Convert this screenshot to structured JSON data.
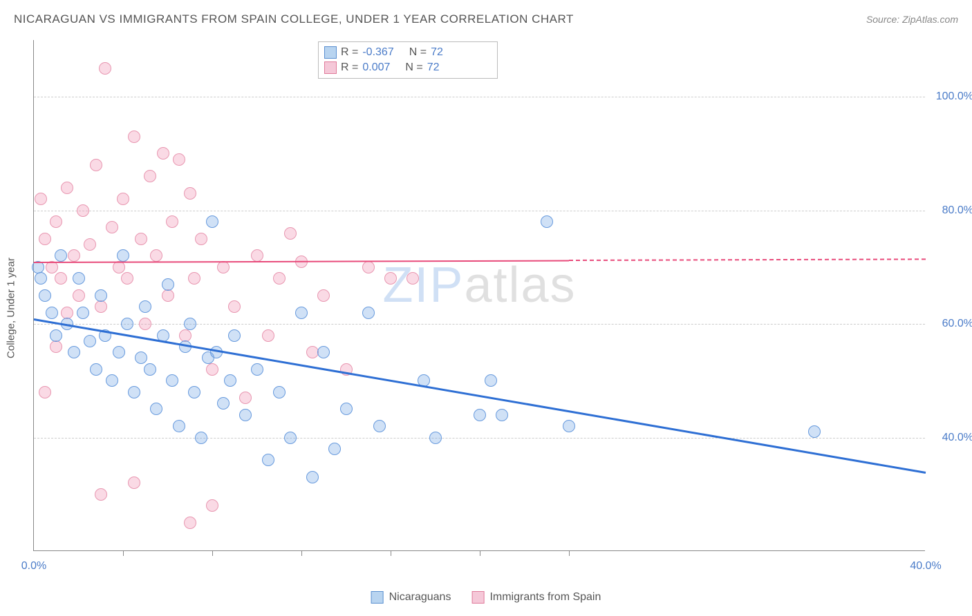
{
  "header": {
    "title": "NICARAGUAN VS IMMIGRANTS FROM SPAIN COLLEGE, UNDER 1 YEAR CORRELATION CHART",
    "source_prefix": "Source: ",
    "source_name": "ZipAtlas.com"
  },
  "chart": {
    "type": "scatter",
    "y_axis_label": "College, Under 1 year",
    "background_color": "#ffffff",
    "grid_color": "#cccccc",
    "axis_color": "#888888",
    "x_range": [
      0,
      40
    ],
    "y_range": [
      20,
      110
    ],
    "y_ticks": [
      {
        "value": 40,
        "label": "40.0%"
      },
      {
        "value": 60,
        "label": "60.0%"
      },
      {
        "value": 80,
        "label": "80.0%"
      },
      {
        "value": 100,
        "label": "100.0%"
      }
    ],
    "x_ticks_minor": [
      4,
      8,
      12,
      16,
      20,
      24
    ],
    "x_tick_labels": [
      {
        "value": 0,
        "label": "0.0%"
      },
      {
        "value": 40,
        "label": "40.0%"
      }
    ],
    "point_radius": 9,
    "point_stroke_width": 1.5,
    "series": [
      {
        "name": "Nicaraguans",
        "fill_color": "rgba(120,170,230,0.35)",
        "stroke_color": "#6699dd",
        "legend_fill": "#b8d4f0",
        "legend_stroke": "#5a8fd0",
        "R": "-0.367",
        "N": "72",
        "trend": {
          "x1": 0,
          "y1": 61,
          "x2": 40,
          "y2": 34,
          "x_solid_end": 40,
          "color": "#2e6fd4",
          "width": 2.5
        },
        "points": [
          [
            0.2,
            70
          ],
          [
            0.3,
            68
          ],
          [
            0.5,
            65
          ],
          [
            0.8,
            62
          ],
          [
            1.0,
            58
          ],
          [
            1.2,
            72
          ],
          [
            1.5,
            60
          ],
          [
            1.8,
            55
          ],
          [
            2.0,
            68
          ],
          [
            2.2,
            62
          ],
          [
            2.5,
            57
          ],
          [
            2.8,
            52
          ],
          [
            3.0,
            65
          ],
          [
            3.2,
            58
          ],
          [
            3.5,
            50
          ],
          [
            3.8,
            55
          ],
          [
            4.0,
            72
          ],
          [
            4.2,
            60
          ],
          [
            4.5,
            48
          ],
          [
            4.8,
            54
          ],
          [
            5.0,
            63
          ],
          [
            5.2,
            52
          ],
          [
            5.5,
            45
          ],
          [
            5.8,
            58
          ],
          [
            6.0,
            67
          ],
          [
            6.2,
            50
          ],
          [
            6.5,
            42
          ],
          [
            6.8,
            56
          ],
          [
            7.0,
            60
          ],
          [
            7.2,
            48
          ],
          [
            7.5,
            40
          ],
          [
            7.8,
            54
          ],
          [
            8.0,
            78
          ],
          [
            8.2,
            55
          ],
          [
            8.5,
            46
          ],
          [
            8.8,
            50
          ],
          [
            9.0,
            58
          ],
          [
            9.5,
            44
          ],
          [
            10.0,
            52
          ],
          [
            10.5,
            36
          ],
          [
            11.0,
            48
          ],
          [
            11.5,
            40
          ],
          [
            12.0,
            62
          ],
          [
            12.5,
            33
          ],
          [
            13.0,
            55
          ],
          [
            13.5,
            38
          ],
          [
            14.0,
            45
          ],
          [
            15.0,
            62
          ],
          [
            15.5,
            42
          ],
          [
            17.5,
            50
          ],
          [
            18.0,
            40
          ],
          [
            20.0,
            44
          ],
          [
            20.5,
            50
          ],
          [
            21.0,
            44
          ],
          [
            23.0,
            78
          ],
          [
            24.0,
            42
          ],
          [
            35.0,
            41
          ]
        ]
      },
      {
        "name": "Immigrants from Spain",
        "fill_color": "rgba(240,150,180,0.35)",
        "stroke_color": "#e896b0",
        "legend_fill": "#f5c8d8",
        "legend_stroke": "#e07a9a",
        "R": "0.007",
        "N": "72",
        "trend": {
          "x1": 0,
          "y1": 71,
          "x2": 40,
          "y2": 71.5,
          "x_solid_end": 24,
          "color": "#e84a7a",
          "width": 2
        },
        "points": [
          [
            0.3,
            82
          ],
          [
            0.5,
            75
          ],
          [
            0.8,
            70
          ],
          [
            1.0,
            78
          ],
          [
            1.2,
            68
          ],
          [
            1.5,
            84
          ],
          [
            1.8,
            72
          ],
          [
            2.0,
            65
          ],
          [
            2.2,
            80
          ],
          [
            2.5,
            74
          ],
          [
            2.8,
            88
          ],
          [
            3.0,
            63
          ],
          [
            3.2,
            105
          ],
          [
            3.5,
            77
          ],
          [
            3.8,
            70
          ],
          [
            4.0,
            82
          ],
          [
            4.2,
            68
          ],
          [
            4.5,
            93
          ],
          [
            4.8,
            75
          ],
          [
            5.0,
            60
          ],
          [
            5.2,
            86
          ],
          [
            5.5,
            72
          ],
          [
            5.8,
            90
          ],
          [
            6.0,
            65
          ],
          [
            6.2,
            78
          ],
          [
            6.5,
            89
          ],
          [
            6.8,
            58
          ],
          [
            7.0,
            83
          ],
          [
            7.2,
            68
          ],
          [
            7.5,
            75
          ],
          [
            8.0,
            52
          ],
          [
            8.5,
            70
          ],
          [
            9.0,
            63
          ],
          [
            9.5,
            47
          ],
          [
            10.0,
            72
          ],
          [
            10.5,
            58
          ],
          [
            11.0,
            68
          ],
          [
            11.5,
            76
          ],
          [
            12.0,
            71
          ],
          [
            12.5,
            55
          ],
          [
            13.0,
            65
          ],
          [
            14.0,
            52
          ],
          [
            15.0,
            70
          ],
          [
            16.0,
            68
          ],
          [
            17.0,
            68
          ],
          [
            3.0,
            30
          ],
          [
            4.5,
            32
          ],
          [
            8.0,
            28
          ],
          [
            7.0,
            25
          ],
          [
            0.5,
            48
          ],
          [
            1.0,
            56
          ],
          [
            1.5,
            62
          ]
        ]
      }
    ]
  },
  "top_legend": {
    "rows": [
      {
        "series_index": 0,
        "r_label": "R =",
        "r_value": "-0.367",
        "n_label": "N =",
        "n_value": "72"
      },
      {
        "series_index": 1,
        "r_label": "R =",
        "r_value": "0.007",
        "n_label": "N =",
        "n_value": "72"
      }
    ]
  },
  "bottom_legend": {
    "items": [
      {
        "series_index": 0,
        "label": "Nicaraguans"
      },
      {
        "series_index": 1,
        "label": "Immigrants from Spain"
      }
    ]
  },
  "watermark": {
    "zip": "ZIP",
    "atlas": "atlas"
  }
}
